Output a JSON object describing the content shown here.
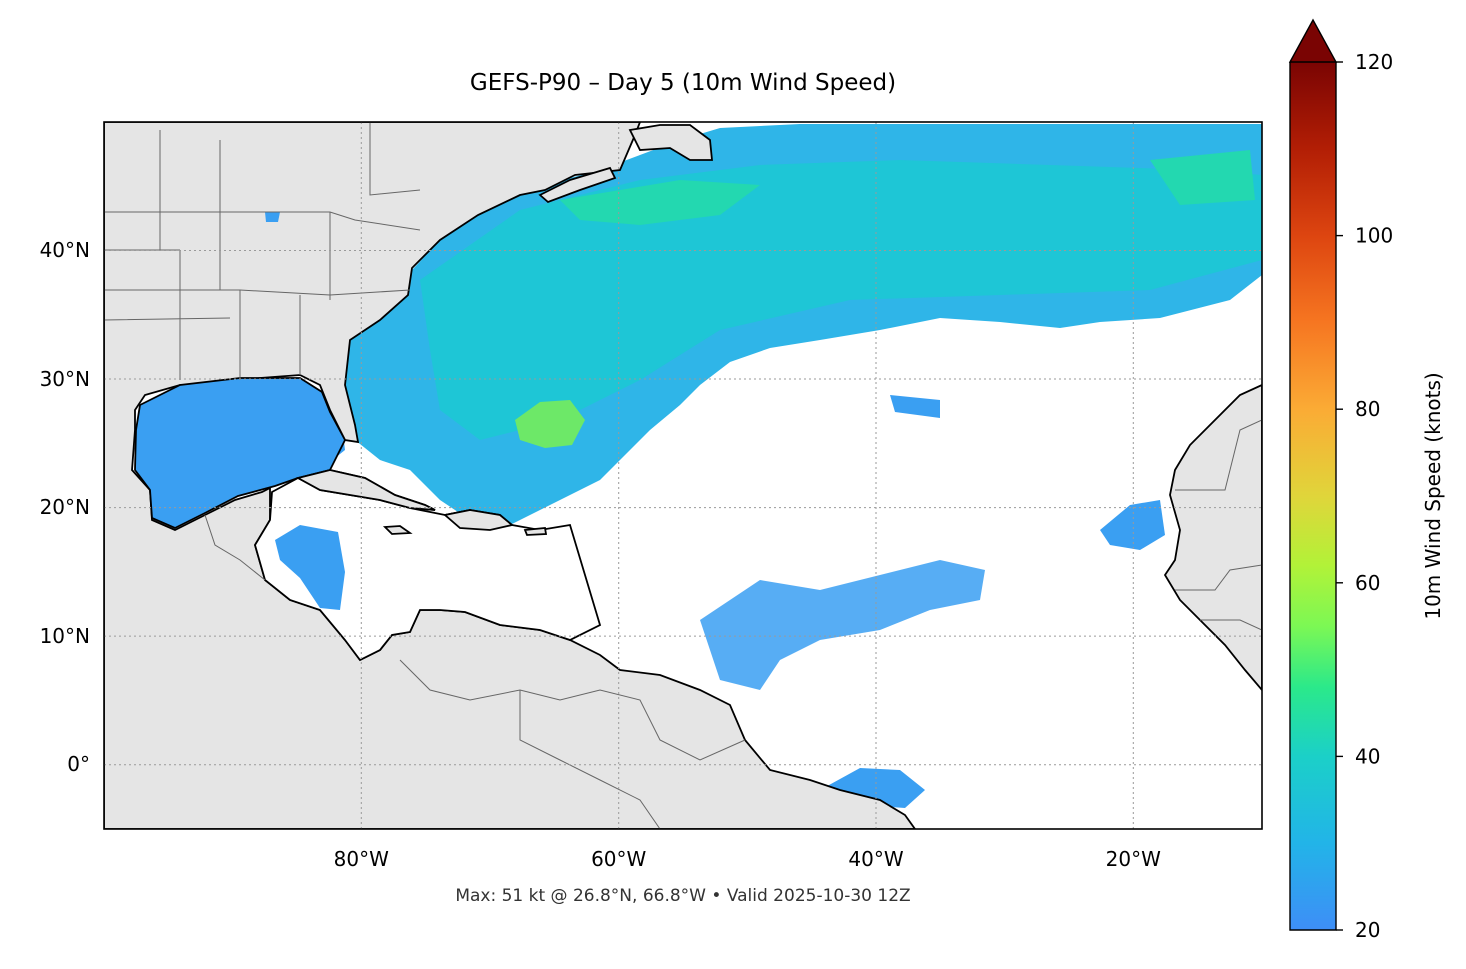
{
  "title": "GEFS-P90 – Day 5 (10m Wind Speed)",
  "subtitle": "Max: 51 kt @ 26.8°N, 66.8°W • Valid 2025-10-30 12Z",
  "map": {
    "projection": "PlateCarree",
    "extent_lon": [
      -100,
      -10
    ],
    "extent_lat": [
      -5,
      50
    ],
    "land_color": "#e5e5e5",
    "ocean_color": "#ffffff",
    "gridlines": "dotted gray",
    "lon_ticks": [
      {
        "value": -80,
        "label": "80°W"
      },
      {
        "value": -60,
        "label": "60°W"
      },
      {
        "value": -40,
        "label": "40°W"
      },
      {
        "value": -20,
        "label": "20°W"
      }
    ],
    "lat_ticks": [
      {
        "value": 0,
        "label": "0°"
      },
      {
        "value": 10,
        "label": "10°N"
      },
      {
        "value": 20,
        "label": "20°N"
      },
      {
        "value": 30,
        "label": "30°N"
      },
      {
        "value": 40,
        "label": "40°N"
      }
    ]
  },
  "colorbar": {
    "label": "10m Wind Speed (knots)",
    "min": 20,
    "max": 120,
    "extend": "max",
    "colormap": "turbo",
    "ticks": [
      "20",
      "40",
      "60",
      "80",
      "100",
      "120"
    ]
  },
  "field": {
    "variable": "10m wind speed",
    "units": "knots",
    "max_value": 51,
    "max_lat": 26.8,
    "max_lon": -66.8
  }
}
